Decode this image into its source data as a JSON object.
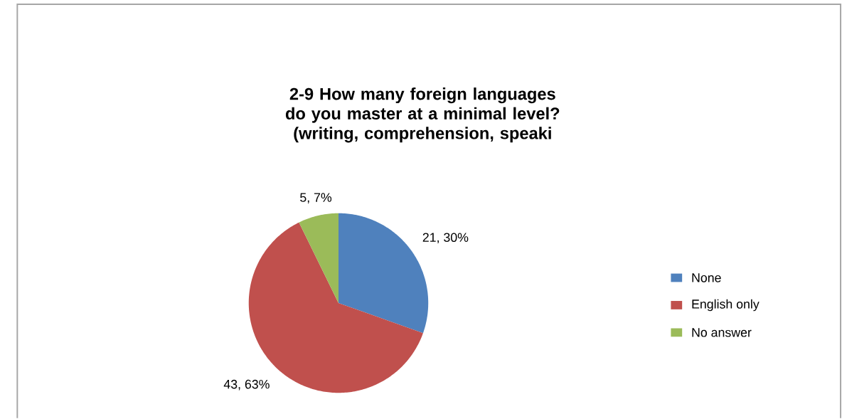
{
  "chart_data": {
    "type": "pie",
    "title": "2-9 How many foreign languages do you master at a minimal level? (writing, comprehension, speaki",
    "categories": [
      "None",
      "English only",
      "No answer"
    ],
    "values": [
      21,
      43,
      5
    ],
    "colors": [
      "#4f81bd",
      "#c0504d",
      "#9bbb59"
    ],
    "value_labels": [
      "21, 30%",
      "43, 63%",
      "5, 7%"
    ],
    "legend": "right"
  }
}
